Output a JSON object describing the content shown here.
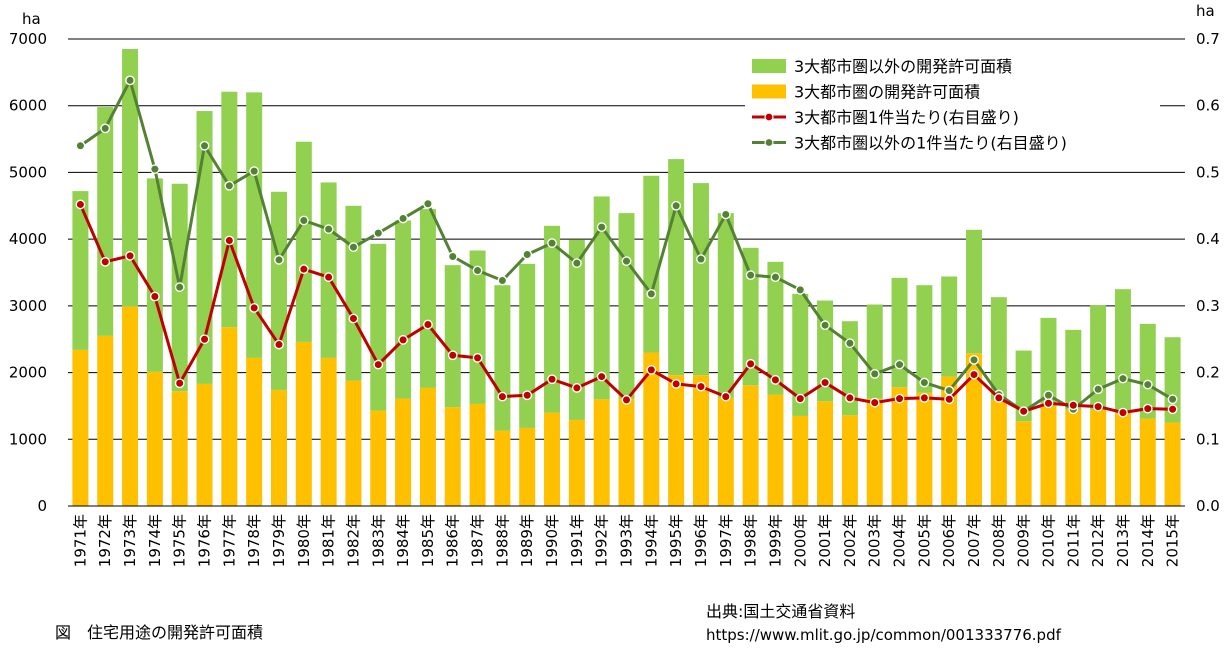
{
  "chart_data": {
    "type": "bar+line",
    "stacked": true,
    "categories": [
      "1971年",
      "1972年",
      "1973年",
      "1974年",
      "1975年",
      "1976年",
      "1977年",
      "1978年",
      "1979年",
      "1980年",
      "1981年",
      "1982年",
      "1983年",
      "1984年",
      "1985年",
      "1986年",
      "1987年",
      "1988年",
      "1989年",
      "1990年",
      "1991年",
      "1992年",
      "1993年",
      "1994年",
      "1995年",
      "1996年",
      "1997年",
      "1998年",
      "1999年",
      "2000年",
      "2001年",
      "2002年",
      "2003年",
      "2004年",
      "2005年",
      "2006年",
      "2007年",
      "2008年",
      "2009年",
      "2010年",
      "2011年",
      "2012年",
      "2013年",
      "2014年",
      "2015年"
    ],
    "y_left": {
      "unit": "ha",
      "min": 0,
      "max": 7000,
      "ticks": [
        "0",
        "1000",
        "2000",
        "3000",
        "4000",
        "5000",
        "6000",
        "7000"
      ]
    },
    "y_right": {
      "unit": "ha",
      "min": 0,
      "max": 0.7,
      "ticks": [
        "0.0",
        "0.1",
        "0.2",
        "0.3",
        "0.4",
        "0.5",
        "0.6",
        "0.7"
      ]
    },
    "grid": true,
    "legend_position": "top-right",
    "series": [
      {
        "name": "3大都市圏以外の開発許可面積",
        "type": "bar",
        "axis": "left",
        "color": "#92D050",
        "values": [
          2380,
          3430,
          3860,
          2900,
          3110,
          4090,
          3530,
          3980,
          2970,
          3000,
          2630,
          2620,
          2500,
          2670,
          2680,
          2130,
          2300,
          2180,
          2460,
          2800,
          2700,
          3040,
          2780,
          2650,
          3240,
          2880,
          2770,
          2060,
          1990,
          1830,
          1510,
          1410,
          1410,
          1640,
          1610,
          1500,
          1850,
          1540,
          1060,
          1280,
          1200,
          1570,
          1860,
          1420,
          1280
        ]
      },
      {
        "name": "3大都市圏の開発許可面積",
        "type": "bar",
        "axis": "left",
        "color": "#FFC000",
        "values": [
          2340,
          2550,
          2990,
          2010,
          1720,
          1830,
          2680,
          2220,
          1740,
          2460,
          2220,
          1880,
          1430,
          1610,
          1770,
          1480,
          1530,
          1130,
          1170,
          1400,
          1290,
          1600,
          1610,
          2300,
          1960,
          1960,
          1620,
          1810,
          1670,
          1350,
          1570,
          1360,
          1610,
          1780,
          1700,
          1940,
          2290,
          1590,
          1270,
          1540,
          1440,
          1440,
          1390,
          1310,
          1250
        ]
      },
      {
        "name": "3大都市圏1件当たり(右目盛り)",
        "type": "line",
        "axis": "right",
        "color": "#C00000",
        "values": [
          0.452,
          0.366,
          0.375,
          0.314,
          0.184,
          0.25,
          0.398,
          0.297,
          0.242,
          0.355,
          0.343,
          0.281,
          0.212,
          0.249,
          0.272,
          0.226,
          0.222,
          0.164,
          0.166,
          0.19,
          0.177,
          0.194,
          0.159,
          0.204,
          0.183,
          0.179,
          0.164,
          0.213,
          0.189,
          0.161,
          0.185,
          0.162,
          0.155,
          0.161,
          0.162,
          0.16,
          0.197,
          0.162,
          0.142,
          0.154,
          0.151,
          0.149,
          0.14,
          0.146,
          0.145
        ]
      },
      {
        "name": "3大都市圏以外の1件当たり(右目盛り)",
        "type": "line",
        "axis": "right",
        "color": "#548235",
        "values": [
          0.54,
          0.566,
          0.638,
          0.505,
          0.328,
          0.54,
          0.48,
          0.502,
          0.369,
          0.428,
          0.415,
          0.388,
          0.409,
          0.431,
          0.453,
          0.374,
          0.353,
          0.338,
          0.377,
          0.394,
          0.364,
          0.418,
          0.367,
          0.318,
          0.45,
          0.37,
          0.437,
          0.346,
          0.343,
          0.324,
          0.271,
          0.244,
          0.198,
          0.212,
          0.185,
          0.173,
          0.219,
          0.167,
          0.142,
          0.166,
          0.145,
          0.175,
          0.191,
          0.182,
          0.16
        ]
      }
    ]
  },
  "caption": "図　住宅用途の開発許可面積",
  "source": {
    "label": "出典:国土交通省資料",
    "url": "https://www.mlit.go.jp/common/001333776.pdf"
  }
}
